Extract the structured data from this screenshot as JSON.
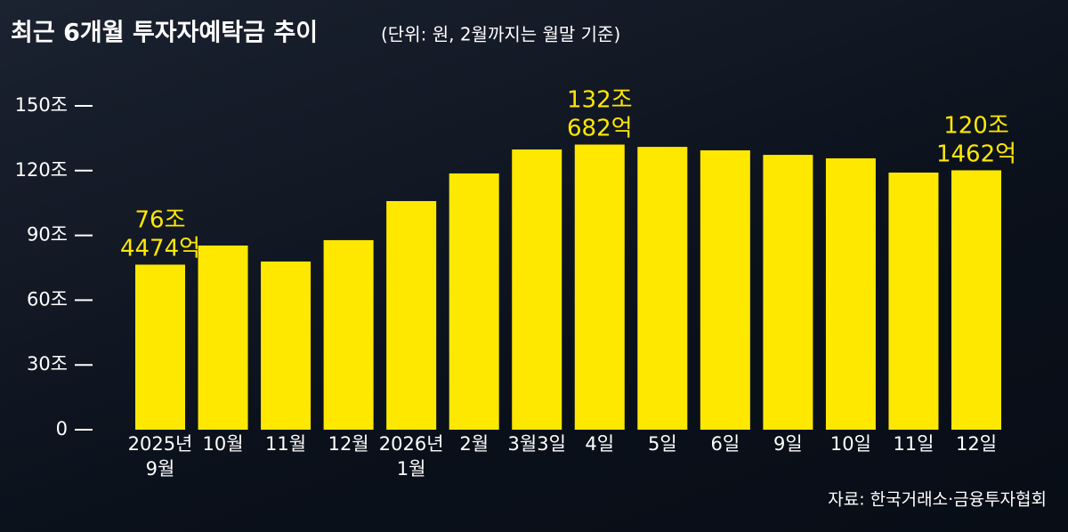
{
  "chart_data": {
    "type": "bar",
    "title": "최근 6개월 투자자예탁금 추이",
    "subtitle": "(단위: 원, 2월까지는 월말 기준)",
    "source": "자료: 한국거래소·금융투자협회",
    "categories": [
      "2025년\n9월",
      "10월",
      "11월",
      "12월",
      "2026년\n1월",
      "2월",
      "3월3일",
      "4일",
      "5일",
      "6일",
      "9일",
      "10일",
      "11일",
      "12일"
    ],
    "values": [
      76.4474,
      85.3,
      77.9,
      87.8,
      105.9,
      118.7,
      129.8,
      132.0682,
      131,
      129.4,
      127.3,
      125.7,
      119.1,
      120.1462
    ],
    "value_labels": [
      "76조\n4474억",
      null,
      null,
      null,
      null,
      null,
      null,
      "132조\n682억",
      null,
      null,
      null,
      null,
      null,
      "120조\n1462억"
    ],
    "color": "#ffe800",
    "ylim": [
      0,
      160
    ],
    "yticks": [
      0,
      {
        "value": 30,
        "label": "30조"
      },
      {
        "value": 60,
        "label": "60조"
      },
      {
        "value": 90,
        "label": "90조"
      },
      {
        "value": 120,
        "label": "120조"
      },
      {
        "value": 150,
        "label": "150조"
      }
    ]
  }
}
